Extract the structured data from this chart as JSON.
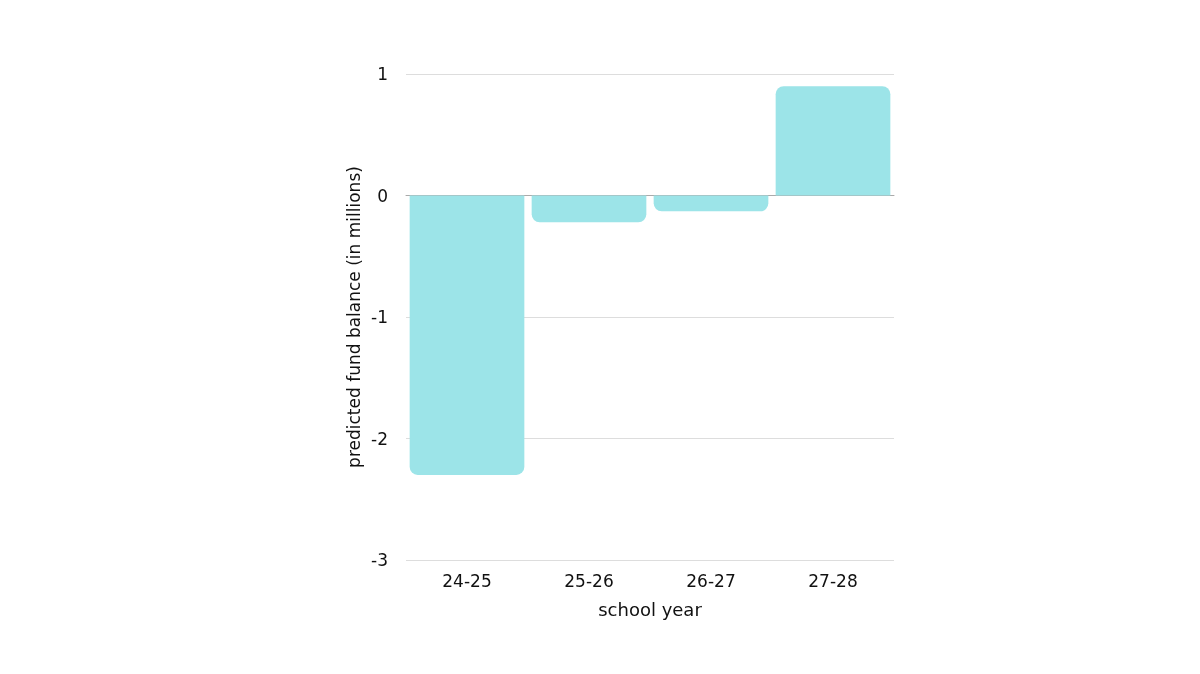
{
  "chart_data": {
    "type": "bar",
    "xlabel": "school year",
    "ylabel": "predicted fund balance (in millions)",
    "categories": [
      "24-25",
      "25-26",
      "26-27",
      "27-28"
    ],
    "values": [
      -2.3,
      -0.22,
      -0.13,
      0.9
    ],
    "color": "#9ce4e8",
    "ylim": [
      -3,
      1
    ],
    "yticks": [
      -3,
      -2,
      -1,
      0,
      1
    ],
    "grid": "y"
  }
}
